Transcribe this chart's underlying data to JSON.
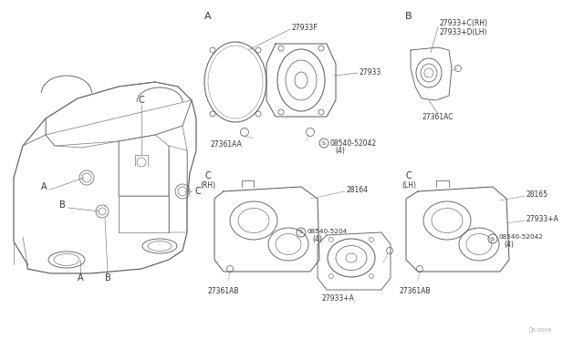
{
  "bg_color": "#ffffff",
  "line_color": "#555555",
  "label_fontsize": 5.5,
  "section_fontsize": 7.0,
  "parts": {
    "27933F": "27933F",
    "27933": "27933",
    "27361AA": "27361AA",
    "bolt_A": "08540-52042\n(4)",
    "27933C_RH": "27933+C(RH)",
    "27933D_LH": "27933+D(LH)",
    "27361AC": "27361AC",
    "28164": "28164",
    "bolt_C_RH": "08540-5204ｎ\n(4)",
    "27361AB": "27361AB",
    "27933A": "27933+A",
    "28165": "28165",
    "bolt_C_LH": "08540-52042\n(4)",
    "code": "㈹R·0006"
  }
}
